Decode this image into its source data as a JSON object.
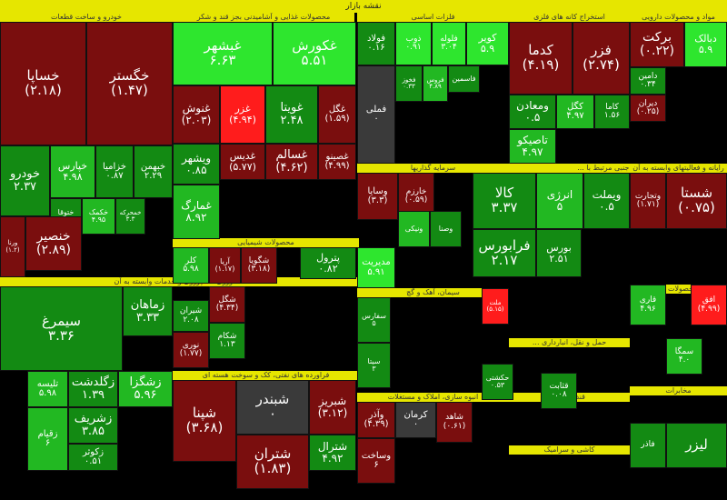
{
  "title": "نقشه بازار",
  "colors": {
    "dg": "#006400",
    "mg": "#138a13",
    "lg": "#22b822",
    "bg": "#2ee62e",
    "dr": "#7a0e0e",
    "mr": "#a30f0f",
    "br": "#ff1c1c",
    "gy": "#3a3a3a"
  },
  "sectors": [
    {
      "name": "خودرو و ساخت قطعات"
    },
    {
      "name": "محصولات غذایی و آشامیدنی بجز قند و شکر"
    },
    {
      "name": "فلزات اساسی"
    },
    {
      "name": "استخراج کانه های فلزی"
    },
    {
      "name": "مواد و محصولات دارویی"
    },
    {
      "name": "سرمایه گذاریها"
    },
    {
      "name": "فعالیتهای جنبی مرتبط با ..."
    },
    {
      "name": "رایانه و فعالیتهای وابسته به آن"
    },
    {
      "name": "کشاورزی، دامپروری و خدمات وابسته به آن"
    },
    {
      "name": "محصولات شیمیایی"
    },
    {
      "name": "فراورده های نفتی، کک و سوخت هسته ای"
    },
    {
      "name": "انبوه سازی، املاک و مستغلات"
    },
    {
      "name": "سیمان، آهک و گچ"
    },
    {
      "name": "سایر محصولات کانی ..."
    },
    {
      "name": "حمل و نقل، انبارداری ..."
    },
    {
      "name": "قند و شکر"
    },
    {
      "name": "کاشی و سرامیک"
    },
    {
      "name": "مخابرات"
    }
  ],
  "tiles": [
    {
      "n": "خساپا",
      "v": "(۲.۱۸)",
      "c": "dr"
    },
    {
      "n": "خگستر",
      "v": "(۱.۴۷)",
      "c": "dr"
    },
    {
      "n": "خودرو",
      "v": "۲.۳۷",
      "c": "mg"
    },
    {
      "n": "خپارس",
      "v": "۴.۹۸",
      "c": "lg"
    },
    {
      "n": "خزامیا",
      "v": "۰.۸۷",
      "c": "mg"
    },
    {
      "n": "خبهمن",
      "v": "۲.۲۹",
      "c": "mg"
    },
    {
      "n": "ختوقا",
      "v": "۱.۷۸",
      "c": "mg"
    },
    {
      "n": "خکمک",
      "v": "۴.۹۵",
      "c": "lg"
    },
    {
      "n": "خمحرکه",
      "v": "۳.۳",
      "c": "mg"
    },
    {
      "n": "ورنا",
      "v": "(۱.۲)",
      "c": "dr"
    },
    {
      "n": "خنصیر",
      "v": "(۲.۸۹)",
      "c": "dr"
    },
    {
      "n": "غبشهر",
      "v": "۶.۶۳",
      "c": "bg"
    },
    {
      "n": "غکورش",
      "v": "۵.۵۱",
      "c": "bg"
    },
    {
      "n": "غنوش",
      "v": "(۲.۰۳)",
      "c": "dr"
    },
    {
      "n": "غزر",
      "v": "(۴.۹۴)",
      "c": "br"
    },
    {
      "n": "غویتا",
      "v": "۲.۴۸",
      "c": "mg"
    },
    {
      "n": "غگل",
      "v": "(۱.۵۹)",
      "c": "dr"
    },
    {
      "n": "ویشهر",
      "v": "۰.۸۵",
      "c": "mg"
    },
    {
      "n": "غمارگ",
      "v": "۸.۹۲",
      "c": "lg"
    },
    {
      "n": "غدیس",
      "v": "(۵.۷۷)",
      "c": "dr"
    },
    {
      "n": "غسالم",
      "v": "(۴.۶۲)",
      "c": "dr"
    },
    {
      "n": "غصینو",
      "v": "(۴.۹۹)",
      "c": "dr"
    },
    {
      "n": "فولاد",
      "v": "۰.۱۶",
      "c": "mg"
    },
    {
      "n": "ذوب",
      "v": "۰.۹۱",
      "c": "bg"
    },
    {
      "n": "فلوله",
      "v": "۳.۰۴",
      "c": "bg"
    },
    {
      "n": "کویر",
      "v": "۵.۹",
      "c": "bg"
    },
    {
      "n": "فملی",
      "v": "۰",
      "c": "gy"
    },
    {
      "n": "فخوز",
      "v": "۰.۳۳",
      "c": "mg"
    },
    {
      "n": "فروس",
      "v": "۴.۸۹",
      "c": "lg"
    },
    {
      "n": "فاسمین",
      "v": "",
      "c": "mg"
    },
    {
      "n": "کدما",
      "v": "(۴.۱۹)",
      "c": "dr"
    },
    {
      "n": "فزر",
      "v": "(۲.۷۴)",
      "c": "dr"
    },
    {
      "n": "کگل",
      "v": "۴.۹۷",
      "c": "lg"
    },
    {
      "n": "ومعادن",
      "v": "۰.۵",
      "c": "mg"
    },
    {
      "n": "تاصیکو",
      "v": "۴.۹۷",
      "c": "lg"
    },
    {
      "n": "کاما",
      "v": "۱.۵۶",
      "c": "mg"
    },
    {
      "n": "برکت",
      "v": "(۰.۲۲)",
      "c": "dr"
    },
    {
      "n": "دبالک",
      "v": "۵.۹",
      "c": "bg"
    },
    {
      "n": "دامین",
      "v": "۰.۳۴",
      "c": "mg"
    },
    {
      "n": "دیران",
      "v": "(۰.۲۵)",
      "c": "dr"
    },
    {
      "n": "وسایا",
      "v": "(۳.۳)",
      "c": "dr"
    },
    {
      "n": "خارزم",
      "v": "(۰.۵۹)",
      "c": "dr"
    },
    {
      "n": "ونیکی",
      "v": "",
      "c": "lg"
    },
    {
      "n": "وصنا",
      "v": "",
      "c": "mg"
    },
    {
      "n": "کالا",
      "v": "۳.۳۷",
      "c": "mg"
    },
    {
      "n": "انرژی",
      "v": "۵",
      "c": "lg"
    },
    {
      "n": "ویملت",
      "v": "۰.۵",
      "c": "mg"
    },
    {
      "n": "وتجارت",
      "v": "(۱.۷۱)",
      "c": "dr"
    },
    {
      "n": "شستا",
      "v": "(۰.۷۵)",
      "c": "dr"
    },
    {
      "n": "فرابورس",
      "v": "۲.۱۷",
      "c": "mg"
    },
    {
      "n": "بورس",
      "v": "۲.۵۱",
      "c": "mg"
    },
    {
      "n": "سیمرغ",
      "v": "۳.۳۶",
      "c": "mg"
    },
    {
      "n": "زماهان",
      "v": "۳.۳۳",
      "c": "mg"
    },
    {
      "n": "تلیسه",
      "v": "۵.۹۸",
      "c": "lg"
    },
    {
      "n": "زگلدشت",
      "v": "۱.۳۹",
      "c": "mg"
    },
    {
      "n": "زشگزا",
      "v": "۵.۹۶",
      "c": "lg"
    },
    {
      "n": "زقیام",
      "v": "۶",
      "c": "lg"
    },
    {
      "n": "زشریف",
      "v": "۳.۸۵",
      "c": "mg"
    },
    {
      "n": "زکوثر",
      "v": "۰.۵۱",
      "c": "mg"
    },
    {
      "n": "شپنا",
      "v": "(۳.۶۸)",
      "c": "dr"
    },
    {
      "n": "شبندر",
      "v": "۰",
      "c": "gy"
    },
    {
      "n": "شبریز",
      "v": "(۳.۱۲)",
      "c": "dr"
    },
    {
      "n": "شترال",
      "v": "۴.۹۲",
      "c": "mg"
    },
    {
      "n": "شتران",
      "v": "(۱.۸۳)",
      "c": "dr"
    },
    {
      "n": "کلر",
      "v": "۵.۹۸",
      "c": "lg"
    },
    {
      "n": "آریا",
      "v": "(۱.۱۷)",
      "c": "dr"
    },
    {
      "n": "شگویا",
      "v": "(۳.۱۸)",
      "c": "dr"
    },
    {
      "n": "پترول",
      "v": "۰.۸۲",
      "c": "mg"
    },
    {
      "n": "شیران",
      "v": "۲.۰۸",
      "c": "mg"
    },
    {
      "n": "شگل",
      "v": "(۴.۳۴)",
      "c": "dr"
    },
    {
      "n": "شکام",
      "v": "۱.۱۳",
      "c": "mg"
    },
    {
      "n": "نوری",
      "v": "(۱.۷۷)",
      "c": "dr"
    },
    {
      "n": "مدیریت",
      "v": "۵.۹۱",
      "c": "bg"
    },
    {
      "n": "ملت",
      "v": "(۵.۱۵)",
      "c": "br"
    },
    {
      "n": "سفارس",
      "v": "۵",
      "c": "mg"
    },
    {
      "n": "سیتا",
      "v": "۳",
      "c": "mg"
    },
    {
      "n": "وآذر",
      "v": "(۴.۳۹)",
      "c": "dr"
    },
    {
      "n": "کرمان",
      "v": "۰",
      "c": "gy"
    },
    {
      "n": "وساخت",
      "v": "۶",
      "c": "dr"
    },
    {
      "n": "شاهد",
      "v": "(۰.۶۱)",
      "c": "dr"
    },
    {
      "n": "حکشتی",
      "v": "۰.۵۳",
      "c": "mg"
    },
    {
      "n": "قثابت",
      "v": "۰.۰۸",
      "c": "mg"
    },
    {
      "n": "افق",
      "v": "(۴.۹۹)",
      "c": "br"
    },
    {
      "n": "قاری",
      "v": "۴.۹۶",
      "c": "lg"
    },
    {
      "n": "سمگا",
      "v": "۴.۰",
      "c": "lg"
    },
    {
      "n": "لیزر",
      "v": "",
      "c": "mg"
    },
    {
      "n": "فاذر",
      "v": "",
      "c": "mg"
    }
  ]
}
